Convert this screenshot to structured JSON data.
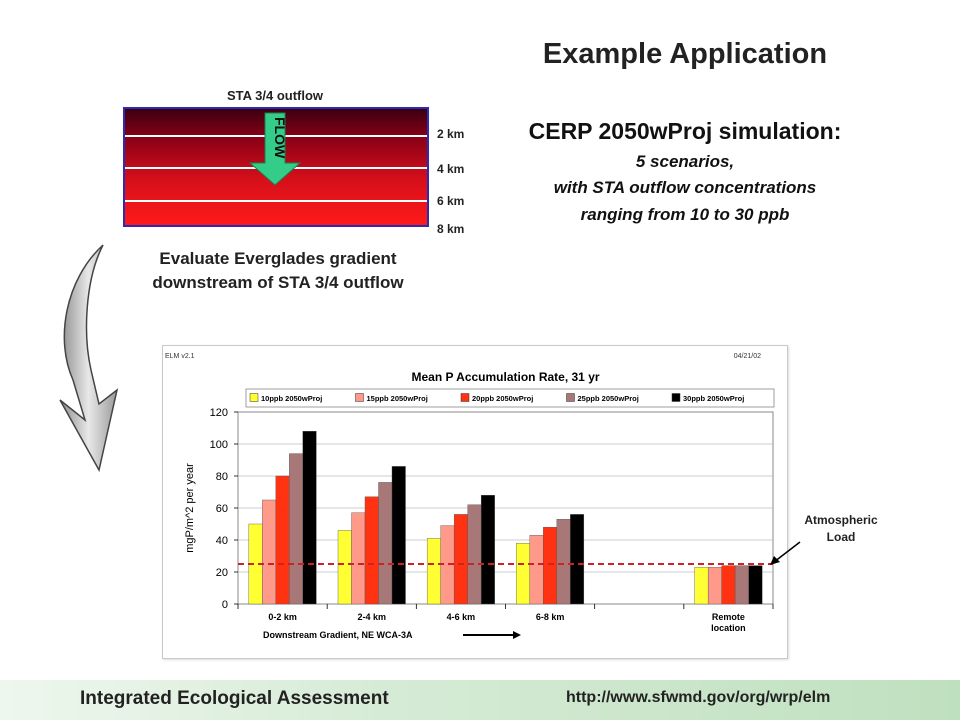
{
  "slide": {
    "title": "Example Application",
    "simulation_title": "CERP 2050wProj simulation:",
    "simulation_lines": [
      "5 scenarios,",
      "with STA outflow concentrations",
      "ranging from 10 to 30 ppb"
    ],
    "sta_label": "STA 3/4 outflow",
    "flow_label": "FLOW",
    "distance_labels": [
      "2 km",
      "4 km",
      "6 km",
      "8 km"
    ],
    "evaluate_lines": [
      "Evaluate Everglades gradient",
      "downstream of STA 3/4 outflow"
    ],
    "atmospheric_lines": [
      "Atmospheric",
      "Load"
    ],
    "footer_left": "Integrated Ecological Assessment",
    "footer_right": "http://www.sfwmd.gov/org/wrp/elm",
    "colors": {
      "gradient_band_dark": "#3a0010",
      "gradient_band_light": "#ff1a1a",
      "flow_arrow": "#33cc88",
      "frame_border": "#2b2bb5"
    }
  },
  "chart_data": {
    "type": "bar",
    "header_left": "ELM v2.1",
    "header_right": "04/21/02",
    "title": "Mean P Accumulation Rate, 31 yr",
    "xlabel": "Downstream Gradient, NE WCA-3A",
    "ylabel": "mgP/m^2 per year",
    "ylim": [
      0,
      120
    ],
    "yticks": [
      0,
      20,
      40,
      60,
      80,
      100,
      120
    ],
    "grid": true,
    "legend_position": "top",
    "categories": [
      "0-2 km",
      "2-4 km",
      "4-6 km",
      "6-8 km",
      "",
      "Remote location"
    ],
    "series": [
      {
        "name": "10ppb 2050wProj",
        "color": "#ffff33",
        "values": [
          50,
          46,
          41,
          38,
          null,
          23
        ]
      },
      {
        "name": "15ppb 2050wProj",
        "color": "#ff9a8a",
        "values": [
          65,
          57,
          49,
          43,
          null,
          23
        ]
      },
      {
        "name": "20ppb 2050wProj",
        "color": "#ff3311",
        "values": [
          80,
          67,
          56,
          48,
          null,
          24
        ]
      },
      {
        "name": "25ppb 2050wProj",
        "color": "#a87878",
        "values": [
          94,
          76,
          62,
          53,
          null,
          24
        ]
      },
      {
        "name": "30ppb 2050wProj",
        "color": "#000000",
        "values": [
          108,
          86,
          68,
          56,
          null,
          24
        ]
      }
    ],
    "atmospheric_load_line": 25,
    "atmospheric_line_color": "#d0202a"
  }
}
